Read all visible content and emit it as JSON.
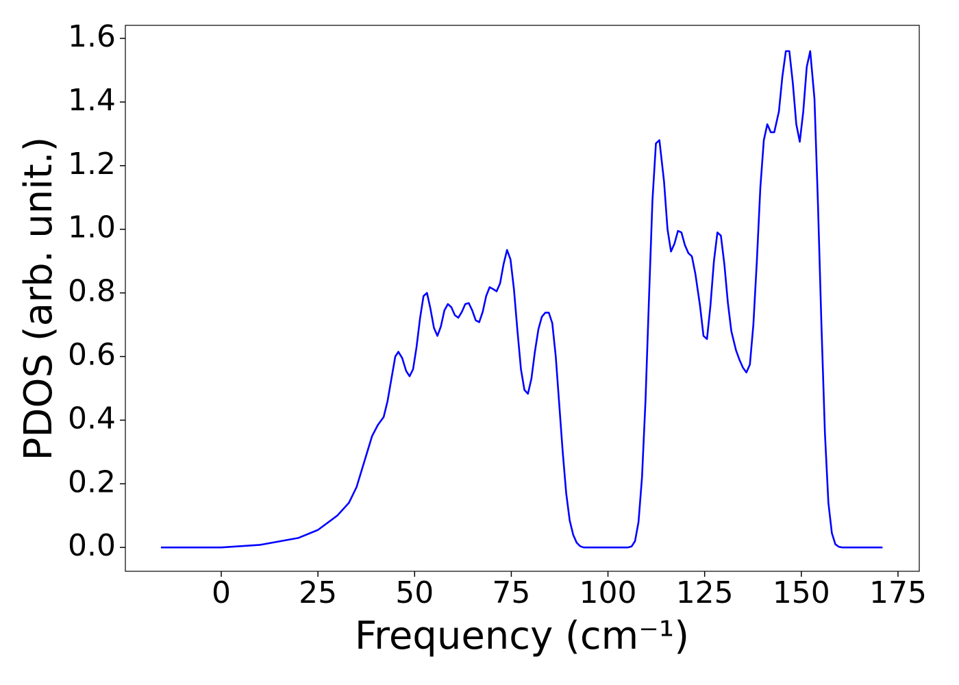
{
  "chart_data": {
    "type": "line",
    "xlabel": "Frequency (cm⁻¹)",
    "ylabel": "PDOS (arb. unit.)",
    "color": "#0000ff",
    "x": [
      -15.6,
      0,
      10,
      20,
      25,
      30,
      33,
      35,
      36.5,
      38,
      39,
      40.5,
      42,
      43,
      44,
      45,
      45.8,
      46.8,
      47.8,
      48.7,
      49.6,
      50.5,
      51.4,
      52.3,
      53.2,
      54.1,
      55,
      55.9,
      56.8,
      57.7,
      58.6,
      59.5,
      60.4,
      61.3,
      62.2,
      63.1,
      64,
      64.9,
      65.8,
      66.7,
      67.6,
      68.5,
      69.4,
      70.3,
      71.2,
      72.1,
      73,
      73.9,
      74.8,
      75.7,
      76.6,
      77.5,
      78.4,
      79.3,
      80.2,
      81.1,
      82,
      82.9,
      83.8,
      84.7,
      85.6,
      86.5,
      87.4,
      88.3,
      89.2,
      90.1,
      91,
      91.9,
      92.8,
      93.7,
      105.2,
      106.1,
      107,
      107.9,
      108.8,
      109.7,
      110.6,
      111.5,
      112.4,
      113.3,
      114.5,
      115.4,
      116.3,
      117.2,
      118.1,
      119,
      119.9,
      120.8,
      121.7,
      122.6,
      123.8,
      124.7,
      125.6,
      126.5,
      127.4,
      128.3,
      129.2,
      130.1,
      131,
      131.9,
      133.1,
      134,
      134.9,
      135.8,
      136.7,
      137.6,
      138.5,
      139.4,
      140.3,
      141.2,
      142.1,
      143,
      144.2,
      145.1,
      146,
      146.9,
      147.8,
      148.7,
      149.6,
      150.5,
      151.4,
      152.3,
      153.4,
      154.3,
      155.2,
      156.1,
      157,
      157.9,
      158.8,
      159.7,
      160.6,
      171
    ],
    "values": [
      0,
      0,
      0.008,
      0.03,
      0.055,
      0.1,
      0.14,
      0.19,
      0.25,
      0.31,
      0.35,
      0.385,
      0.41,
      0.46,
      0.53,
      0.6,
      0.615,
      0.595,
      0.555,
      0.538,
      0.56,
      0.63,
      0.72,
      0.79,
      0.8,
      0.75,
      0.69,
      0.665,
      0.695,
      0.745,
      0.765,
      0.755,
      0.73,
      0.722,
      0.74,
      0.765,
      0.768,
      0.745,
      0.714,
      0.708,
      0.74,
      0.79,
      0.818,
      0.812,
      0.805,
      0.83,
      0.89,
      0.935,
      0.905,
      0.81,
      0.68,
      0.56,
      0.495,
      0.483,
      0.53,
      0.615,
      0.685,
      0.725,
      0.738,
      0.738,
      0.705,
      0.6,
      0.45,
      0.3,
      0.17,
      0.085,
      0.04,
      0.015,
      0.004,
      0,
      0,
      0.003,
      0.02,
      0.08,
      0.22,
      0.46,
      0.78,
      1.09,
      1.27,
      1.28,
      1.15,
      1.0,
      0.93,
      0.955,
      0.995,
      0.99,
      0.95,
      0.925,
      0.915,
      0.86,
      0.76,
      0.665,
      0.655,
      0.76,
      0.9,
      0.99,
      0.98,
      0.89,
      0.77,
      0.68,
      0.62,
      0.59,
      0.565,
      0.55,
      0.575,
      0.7,
      0.9,
      1.13,
      1.28,
      1.33,
      1.305,
      1.305,
      1.37,
      1.48,
      1.56,
      1.56,
      1.46,
      1.33,
      1.275,
      1.37,
      1.51,
      1.56,
      1.41,
      1.08,
      0.7,
      0.36,
      0.14,
      0.045,
      0.01,
      0.002,
      0,
      0
    ],
    "xlim": [
      -24.8,
      180.5
    ],
    "xticks": [
      0,
      25,
      50,
      75,
      100,
      125,
      150,
      175
    ],
    "ylim": [
      -0.075,
      1.641
    ],
    "yticks": [
      {
        "value": 0,
        "label": "0.0"
      },
      0.2,
      0.4,
      0.6,
      0.8,
      {
        "value": 1,
        "label": "1.0"
      },
      1.2,
      1.4,
      1.6
    ],
    "grid": false
  }
}
